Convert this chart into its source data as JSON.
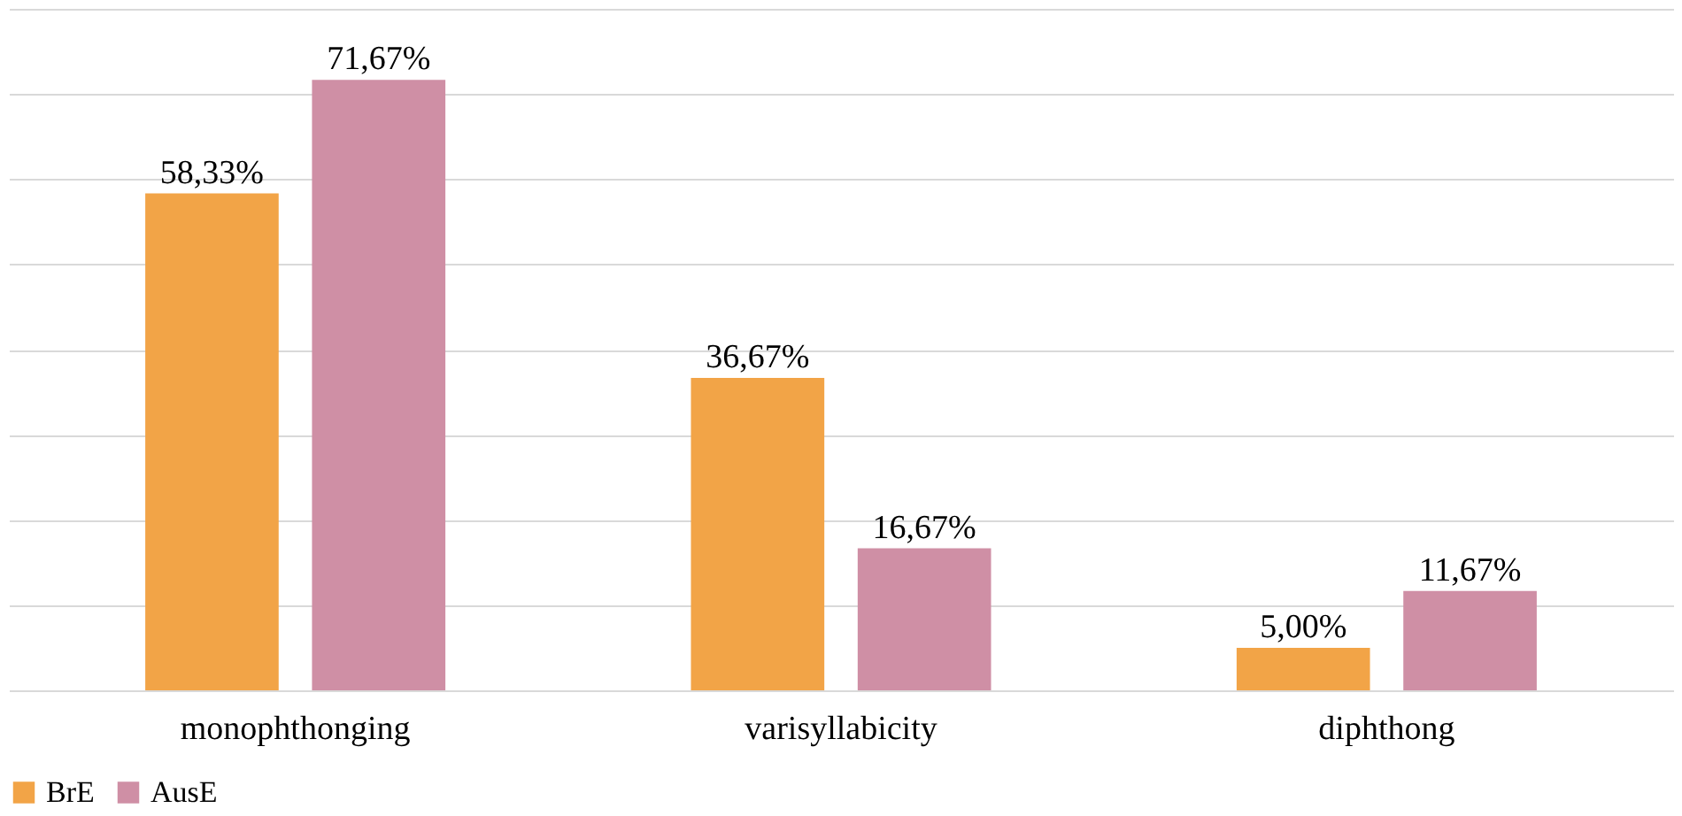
{
  "chart_data": {
    "type": "bar",
    "categories": [
      "monophthonging",
      "varisyllabicity",
      "diphthong"
    ],
    "series": [
      {
        "name": "BrE",
        "color": "#f2a447",
        "values": [
          58.33,
          36.67,
          5.0
        ],
        "value_labels": [
          "58,33%",
          "36,67%",
          "5,00%"
        ]
      },
      {
        "name": "AusE",
        "color": "#cf8fa5",
        "values": [
          71.67,
          16.67,
          11.67
        ],
        "value_labels": [
          "71,67%",
          "16,67%",
          "11,67%"
        ]
      }
    ],
    "ylim": [
      0,
      80
    ],
    "yticks": [
      0,
      10,
      20,
      30,
      40,
      50,
      60,
      70,
      80
    ],
    "tick_labels": "x",
    "grid": "y",
    "legend": "bottom"
  }
}
